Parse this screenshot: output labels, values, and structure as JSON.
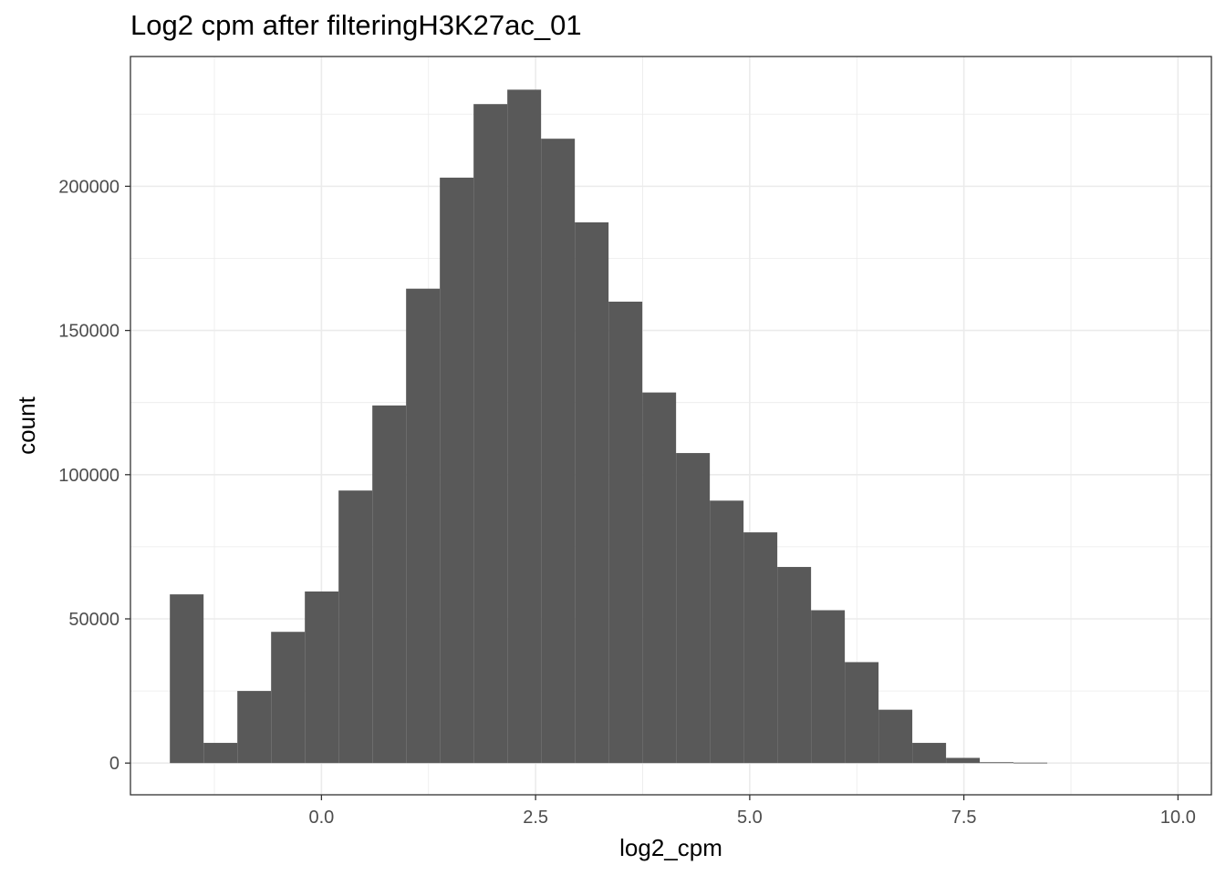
{
  "chart_data": {
    "type": "bar",
    "title": "Log2 cpm after filteringH3K27ac_01",
    "xlabel": "log2_cpm",
    "ylabel": "count",
    "xlim": [
      -2.23,
      10.39
    ],
    "ylim": [
      -11000,
      245000
    ],
    "x_ticks": [
      {
        "value": 0.0,
        "label": "0.0"
      },
      {
        "value": 2.5,
        "label": "2.5"
      },
      {
        "value": 5.0,
        "label": "5.0"
      },
      {
        "value": 7.5,
        "label": "7.5"
      },
      {
        "value": 10.0,
        "label": "10.0"
      }
    ],
    "x_minor": [
      -1.25,
      1.25,
      3.75,
      6.25,
      8.75
    ],
    "y_ticks": [
      {
        "value": 0,
        "label": "0"
      },
      {
        "value": 50000,
        "label": "50000"
      },
      {
        "value": 100000,
        "label": "100000"
      },
      {
        "value": 150000,
        "label": "150000"
      },
      {
        "value": 200000,
        "label": "200000"
      }
    ],
    "y_minor": [
      25000,
      75000,
      125000,
      175000,
      225000
    ],
    "bin_width": 0.394,
    "bins": [
      {
        "x0": -1.77,
        "count": 58500
      },
      {
        "x0": -1.376,
        "count": 7000
      },
      {
        "x0": -0.982,
        "count": 25000
      },
      {
        "x0": -0.588,
        "count": 45500
      },
      {
        "x0": -0.194,
        "count": 59500
      },
      {
        "x0": 0.2,
        "count": 94500
      },
      {
        "x0": 0.594,
        "count": 124000
      },
      {
        "x0": 0.988,
        "count": 164500
      },
      {
        "x0": 1.382,
        "count": 203000
      },
      {
        "x0": 1.776,
        "count": 228500
      },
      {
        "x0": 2.17,
        "count": 233500
      },
      {
        "x0": 2.564,
        "count": 216500
      },
      {
        "x0": 2.958,
        "count": 187500
      },
      {
        "x0": 3.352,
        "count": 160000
      },
      {
        "x0": 3.746,
        "count": 128500
      },
      {
        "x0": 4.14,
        "count": 107500
      },
      {
        "x0": 4.534,
        "count": 91000
      },
      {
        "x0": 4.928,
        "count": 80000
      },
      {
        "x0": 5.322,
        "count": 68000
      },
      {
        "x0": 5.716,
        "count": 53000
      },
      {
        "x0": 6.11,
        "count": 35000
      },
      {
        "x0": 6.504,
        "count": 18500
      },
      {
        "x0": 6.898,
        "count": 7000
      },
      {
        "x0": 7.292,
        "count": 1800
      },
      {
        "x0": 7.686,
        "count": 300
      },
      {
        "x0": 8.08,
        "count": 150
      }
    ],
    "bar_color": "#595959",
    "grid": true,
    "grid_color": "#ebebeb",
    "border_color": "#333333"
  }
}
